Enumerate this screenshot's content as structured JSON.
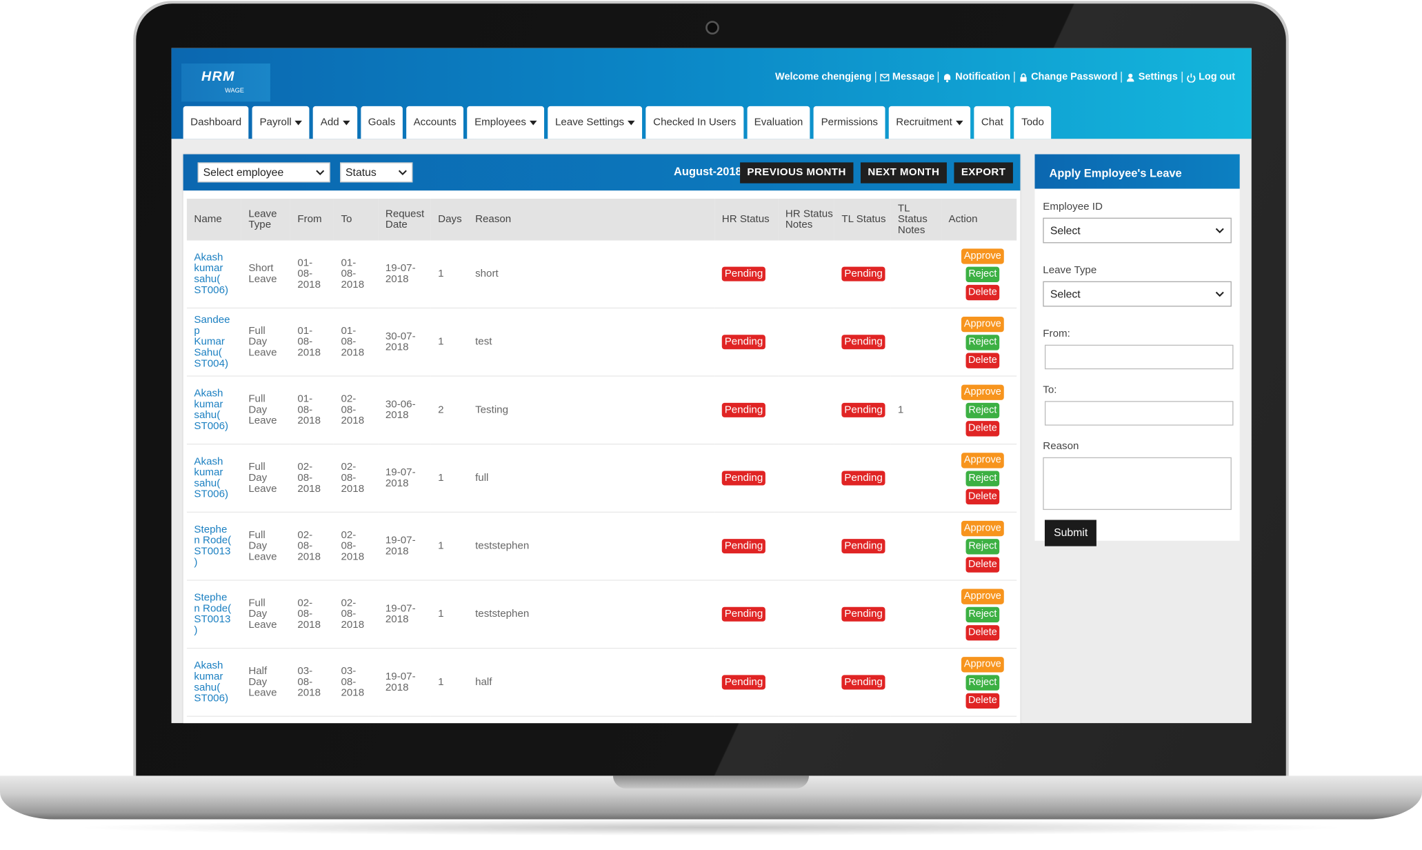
{
  "header": {
    "logo": {
      "title": "HRM",
      "subtitle": "WAGE"
    },
    "user_links": [
      {
        "label": "Welcome chengjeng"
      },
      {
        "label": "Message",
        "icon": "mail"
      },
      {
        "label": "Notification",
        "icon": "bell"
      },
      {
        "label": "Change Password",
        "icon": "lock"
      },
      {
        "label": "Settings",
        "icon": "user"
      },
      {
        "label": "Log out",
        "icon": "power"
      }
    ]
  },
  "nav": [
    {
      "label": "Dashboard"
    },
    {
      "label": "Payroll",
      "dropdown": true
    },
    {
      "label": "Add",
      "dropdown": true
    },
    {
      "label": "Goals"
    },
    {
      "label": "Accounts"
    },
    {
      "label": "Employees",
      "dropdown": true
    },
    {
      "label": "Leave Settings",
      "dropdown": true
    },
    {
      "label": "Checked In Users"
    },
    {
      "label": "Evaluation"
    },
    {
      "label": "Permissions"
    },
    {
      "label": "Recruitment",
      "dropdown": true
    },
    {
      "label": "Chat"
    },
    {
      "label": "Todo"
    }
  ],
  "toolbar": {
    "employee_select": "Select employee",
    "status_select": "Status",
    "month": "August-2018",
    "buttons": [
      "PREVIOUS MONTH",
      "NEXT MONTH",
      "EXPORT"
    ]
  },
  "table": {
    "columns": [
      "Name",
      "Leave Type",
      "From",
      "To",
      "Request Date",
      "Days",
      "Reason",
      "HR Status",
      "HR Status Notes",
      "TL Status",
      "TL Status Notes",
      "Action"
    ],
    "rows": [
      {
        "name": "Akash kumar sahu( ST006)",
        "leave_type": "Short Leave",
        "from": "01-08-2018",
        "to": "01-08-2018",
        "request_date": "19-07-2018",
        "days": 1,
        "reason": "short",
        "hr_status": "Pending",
        "tl_status": "Pending",
        "actions": [
          "Approve",
          "Reject",
          "Delete"
        ]
      },
      {
        "name": "Sandeep Kumar Sahu( ST004)",
        "leave_type": "Full Day Leave",
        "from": "01-08-2018",
        "to": "01-08-2018",
        "request_date": "30-07-2018",
        "days": 1,
        "reason": "test",
        "hr_status": "Pending",
        "tl_status": "Pending",
        "actions": [
          "Approve",
          "Reject",
          "Delete"
        ]
      },
      {
        "name": "Akash kumar sahu( ST006)",
        "leave_type": "Full Day Leave",
        "from": "01-08-2018",
        "to": "02-08-2018",
        "request_date": "30-06-2018",
        "days": 2,
        "reason": "Testing",
        "hr_status": "Pending",
        "tl_status": "Pending",
        "tl_status_notes": "1",
        "actions": [
          "Approve",
          "Reject",
          "Delete"
        ]
      },
      {
        "name": "Akash kumar sahu( ST006)",
        "leave_type": "Full Day Leave",
        "from": "02-08-2018",
        "to": "02-08-2018",
        "request_date": "19-07-2018",
        "days": 1,
        "reason": "full",
        "hr_status": "Pending",
        "tl_status": "Pending",
        "actions": [
          "Approve",
          "Reject",
          "Delete"
        ]
      },
      {
        "name": "Stephen Rode( ST0013)",
        "leave_type": "Full Day Leave",
        "from": "02-08-2018",
        "to": "02-08-2018",
        "request_date": "19-07-2018",
        "days": 1,
        "reason": "teststephen",
        "hr_status": "Pending",
        "tl_status": "Pending",
        "actions": [
          "Approve",
          "Reject",
          "Delete"
        ]
      },
      {
        "name": "Stephen Rode( ST0013)",
        "leave_type": "Full Day Leave",
        "from": "02-08-2018",
        "to": "02-08-2018",
        "request_date": "19-07-2018",
        "days": 1,
        "reason": "teststephen",
        "hr_status": "Pending",
        "tl_status": "Pending",
        "actions": [
          "Approve",
          "Reject",
          "Delete"
        ]
      },
      {
        "name": "Akash kumar sahu( ST006)",
        "leave_type": "Half Day Leave",
        "from": "03-08-2018",
        "to": "03-08-2018",
        "request_date": "19-07-2018",
        "days": 1,
        "reason": "half",
        "hr_status": "Pending",
        "tl_status": "Pending",
        "actions": [
          "Approve",
          "Reject",
          "Delete"
        ]
      }
    ]
  },
  "leave_form": {
    "title": "Apply Employee's Leave",
    "fields": [
      {
        "label": "Employee ID",
        "type": "select",
        "placeholder": "Select"
      },
      {
        "label": "Leave Type",
        "type": "select",
        "placeholder": "Select"
      },
      {
        "label": "From:",
        "type": "input"
      },
      {
        "label": "To:",
        "type": "input"
      },
      {
        "label": "Reason",
        "type": "textarea"
      }
    ],
    "submit": "Submit"
  }
}
